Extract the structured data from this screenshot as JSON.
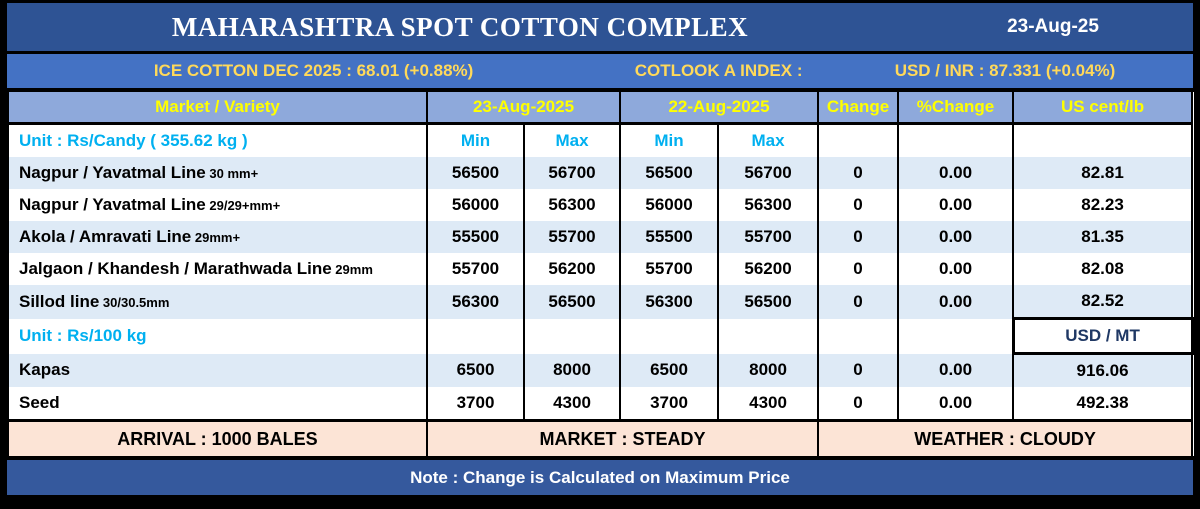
{
  "title_bar": {
    "title": "MAHARASHTRA SPOT COTTON COMPLEX",
    "date": "23-Aug-25"
  },
  "ticker_bar": {
    "ice_cotton": "ICE COTTON DEC 2025 : 68.01 (+0.88%)",
    "cotlook": "COTLOOK A INDEX :",
    "usd_inr": "USD / INR : 87.331 (+0.04%)"
  },
  "table": {
    "col_headers": {
      "market": "Market / Variety",
      "date_today": "23-Aug-2025",
      "date_prev": "22-Aug-2025",
      "change": "Change",
      "pct_change": "%Change",
      "us_cent": "US cent/lb"
    },
    "sections": [
      {
        "unit_label": "Unit : Rs/Candy ( 355.62 kg )",
        "sub_headers": [
          "Min",
          "Max",
          "Min",
          "Max"
        ],
        "rows": [
          {
            "market": "Nagpur / Yavatmal Line",
            "spec": "30 mm+",
            "values": [
              "56500",
              "56700",
              "56500",
              "56700",
              "0",
              "0.00",
              "82.81"
            ]
          },
          {
            "market": "Nagpur / Yavatmal Line",
            "spec": "29/29+mm+",
            "values": [
              "56000",
              "56300",
              "56000",
              "56300",
              "0",
              "0.00",
              "82.23"
            ]
          },
          {
            "market": "Akola / Amravati Line",
            "spec": "29mm+",
            "values": [
              "55500",
              "55700",
              "55500",
              "55700",
              "0",
              "0.00",
              "81.35"
            ]
          },
          {
            "market": "Jalgaon / Khandesh / Marathwada Line",
            "spec": "29mm",
            "values": [
              "55700",
              "56200",
              "55700",
              "56200",
              "0",
              "0.00",
              "82.08"
            ]
          },
          {
            "market": "Sillod line",
            "spec": "30/30.5mm",
            "values": [
              "56300",
              "56500",
              "56300",
              "56500",
              "0",
              "0.00",
              "82.52"
            ]
          }
        ]
      },
      {
        "unit_label": "Unit : Rs/100 kg",
        "last_col_label": "USD / MT",
        "rows": [
          {
            "market": "Kapas",
            "spec": "",
            "values": [
              "6500",
              "8000",
              "6500",
              "8000",
              "0",
              "0.00",
              "916.06"
            ]
          },
          {
            "market": "Seed",
            "spec": "",
            "values": [
              "3700",
              "4300",
              "3700",
              "4300",
              "0",
              "0.00",
              "492.38"
            ]
          }
        ]
      }
    ]
  },
  "summary_bar": {
    "arrival": "ARRIVAL : 1000 BALES",
    "market": "MARKET : STEADY",
    "weather": "WEATHER : CLOUDY"
  },
  "footer_note": "Note : Change is Calculated on Maximum Price",
  "colors": {
    "title_bg": "#2E5394",
    "ticker_bg": "#4472C4",
    "ticker_text": "#FFD95A",
    "header_bg": "#8EA9DB",
    "header_text": "#FFFF00",
    "unit_text": "#00B0F0",
    "row_shade": "#DEEAF6",
    "usdmt_bg": "#BDD7EE",
    "usdmt_text": "#1F3864",
    "summary_bg": "#FCE4D6",
    "footer_bg": "#35599D"
  }
}
